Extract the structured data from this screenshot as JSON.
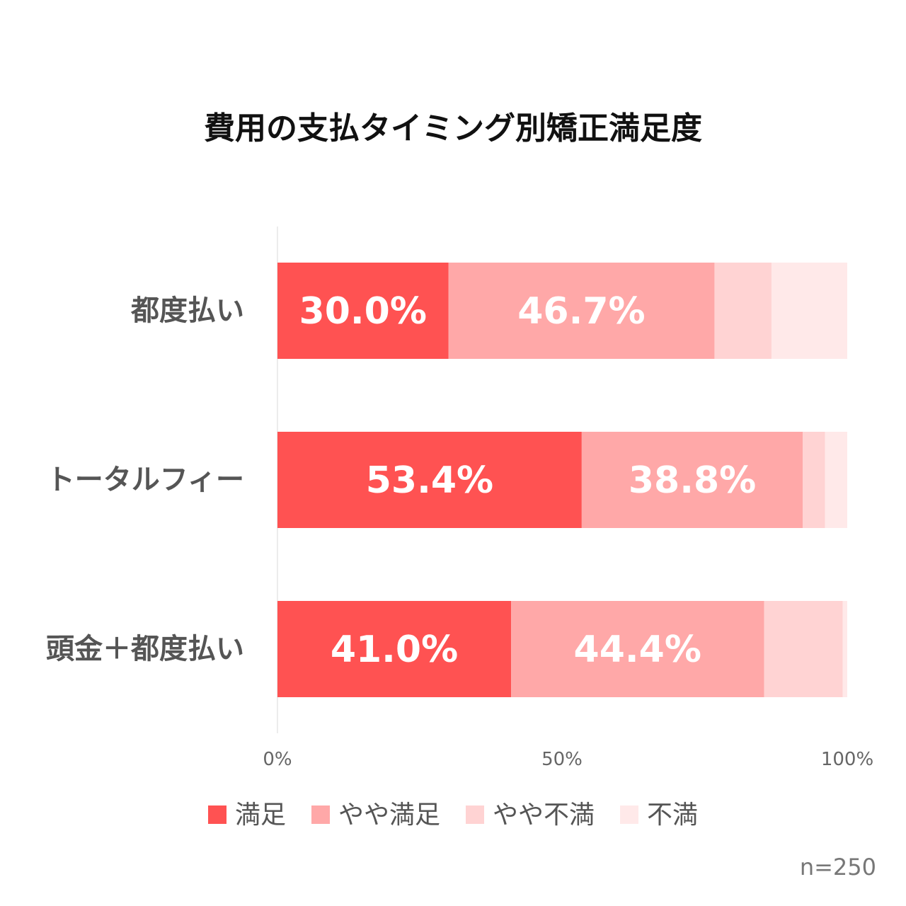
{
  "chart_data": {
    "type": "bar",
    "orientation": "horizontal",
    "stacked": true,
    "title": "費用の支払タイミング別矯正満足度",
    "categories": [
      "都度払い",
      "トータルフィー",
      "頭金＋都度払い"
    ],
    "series": [
      {
        "name": "満足",
        "color": "#ff5252",
        "values": [
          30.0,
          53.4,
          41.0
        ],
        "labels": [
          "30.0%",
          "53.4%",
          "41.0%"
        ]
      },
      {
        "name": "やや満足",
        "color": "#ffa8a8",
        "values": [
          46.7,
          38.8,
          44.4
        ],
        "labels": [
          "46.7%",
          "38.8%",
          "44.4%"
        ]
      },
      {
        "name": "やや不満",
        "color": "#ffd3d3",
        "values": [
          10.0,
          3.9,
          13.8
        ],
        "labels": []
      },
      {
        "name": "不満",
        "color": "#ffe9e9",
        "values": [
          13.3,
          3.9,
          0.8
        ],
        "labels": []
      }
    ],
    "xlim": [
      0,
      100
    ],
    "x_ticks": [
      "0%",
      "50%",
      "100%"
    ],
    "legend_position": "bottom",
    "grid": false,
    "note": "n=250"
  }
}
